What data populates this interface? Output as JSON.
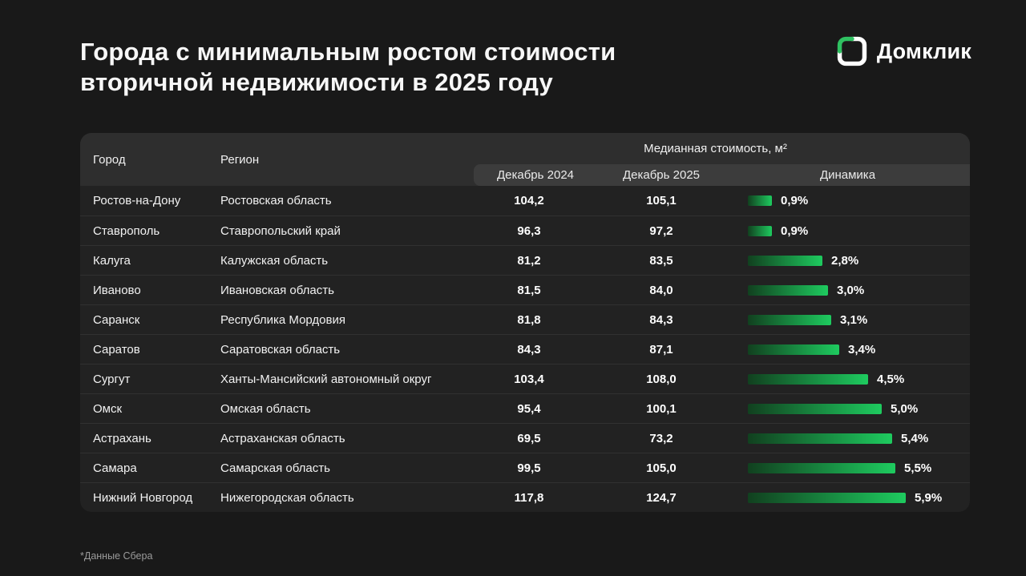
{
  "page": {
    "title_line1": "Города с минимальным ростом стоимости",
    "title_line2": "вторичной недвижимости в 2025 году",
    "brand_name": "Домклик",
    "footnote": "*Данные Сбера"
  },
  "table": {
    "headers": {
      "city": "Город",
      "region": "Регион",
      "group": "Медианная стоимость, м²",
      "dec2024": "Декабрь 2024",
      "dec2025": "Декабрь 2025",
      "dynamics": "Динамика"
    },
    "bar_max_pct": 5.9,
    "rows": [
      {
        "city": "Ростов-на-Дону",
        "region": "Ростовская область",
        "dec2024": "104,2",
        "dec2025": "105,1",
        "dynamics": "0,9%",
        "pct": 0.9
      },
      {
        "city": "Ставрополь",
        "region": "Ставропольский край",
        "dec2024": "96,3",
        "dec2025": "97,2",
        "dynamics": "0,9%",
        "pct": 0.9
      },
      {
        "city": "Калуга",
        "region": "Калужская область",
        "dec2024": "81,2",
        "dec2025": "83,5",
        "dynamics": "2,8%",
        "pct": 2.8
      },
      {
        "city": "Иваново",
        "region": "Ивановская область",
        "dec2024": "81,5",
        "dec2025": "84,0",
        "dynamics": "3,0%",
        "pct": 3.0
      },
      {
        "city": "Саранск",
        "region": "Республика Мордовия",
        "dec2024": "81,8",
        "dec2025": "84,3",
        "dynamics": "3,1%",
        "pct": 3.1
      },
      {
        "city": "Саратов",
        "region": "Саратовская область",
        "dec2024": "84,3",
        "dec2025": "87,1",
        "dynamics": "3,4%",
        "pct": 3.4
      },
      {
        "city": "Сургут",
        "region": "Ханты-Мансийский автономный округ",
        "dec2024": "103,4",
        "dec2025": "108,0",
        "dynamics": "4,5%",
        "pct": 4.5
      },
      {
        "city": "Омск",
        "region": "Омская область",
        "dec2024": "95,4",
        "dec2025": "100,1",
        "dynamics": "5,0%",
        "pct": 5.0
      },
      {
        "city": "Астрахань",
        "region": "Астраханская область",
        "dec2024": "69,5",
        "dec2025": "73,2",
        "dynamics": "5,4%",
        "pct": 5.4
      },
      {
        "city": "Самара",
        "region": "Самарская область",
        "dec2024": "99,5",
        "dec2025": "105,0",
        "dynamics": "5,5%",
        "pct": 5.5
      },
      {
        "city": "Нижний Новгород",
        "region": "Нижегородская область",
        "dec2024": "117,8",
        "dec2025": "124,7",
        "dynamics": "5,9%",
        "pct": 5.9
      }
    ]
  },
  "colors": {
    "bar_gradient_start": "#11401f",
    "bar_gradient_end": "#1ecb5f",
    "brand_green": "#2fc161",
    "background": "#191919",
    "table_background": "#222222",
    "header_background": "#2e2e2e",
    "subheader_background": "#3c3c3c"
  },
  "chart_data": {
    "type": "table",
    "title": "Города с минимальным ростом стоимости вторичной недвижимости в 2025 году",
    "unit": "Медианная стоимость, м²",
    "columns": [
      "Город",
      "Регион",
      "Декабрь 2024",
      "Декабрь 2025",
      "Динамика, %"
    ],
    "rows": [
      [
        "Ростов-на-Дону",
        "Ростовская область",
        104.2,
        105.1,
        0.9
      ],
      [
        "Ставрополь",
        "Ставропольский край",
        96.3,
        97.2,
        0.9
      ],
      [
        "Калуга",
        "Калужская область",
        81.2,
        83.5,
        2.8
      ],
      [
        "Иваново",
        "Ивановская область",
        81.5,
        84.0,
        3.0
      ],
      [
        "Саранск",
        "Республика Мордовия",
        81.8,
        84.3,
        3.1
      ],
      [
        "Саратов",
        "Саратовская область",
        84.3,
        87.1,
        3.4
      ],
      [
        "Сургут",
        "Ханты-Мансийский автономный округ",
        103.4,
        108.0,
        4.5
      ],
      [
        "Омск",
        "Омская область",
        95.4,
        100.1,
        5.0
      ],
      [
        "Астрахань",
        "Астраханская область",
        69.5,
        73.2,
        5.4
      ],
      [
        "Самара",
        "Самарская область",
        99.5,
        105.0,
        5.5
      ],
      [
        "Нижний Новгород",
        "Нижегородская область",
        117.8,
        124.7,
        5.9
      ]
    ],
    "bar_column": "Динамика, %",
    "bar_range": [
      0,
      5.9
    ],
    "legend_position": "none",
    "grid": false,
    "source": "*Данные Сбера"
  }
}
